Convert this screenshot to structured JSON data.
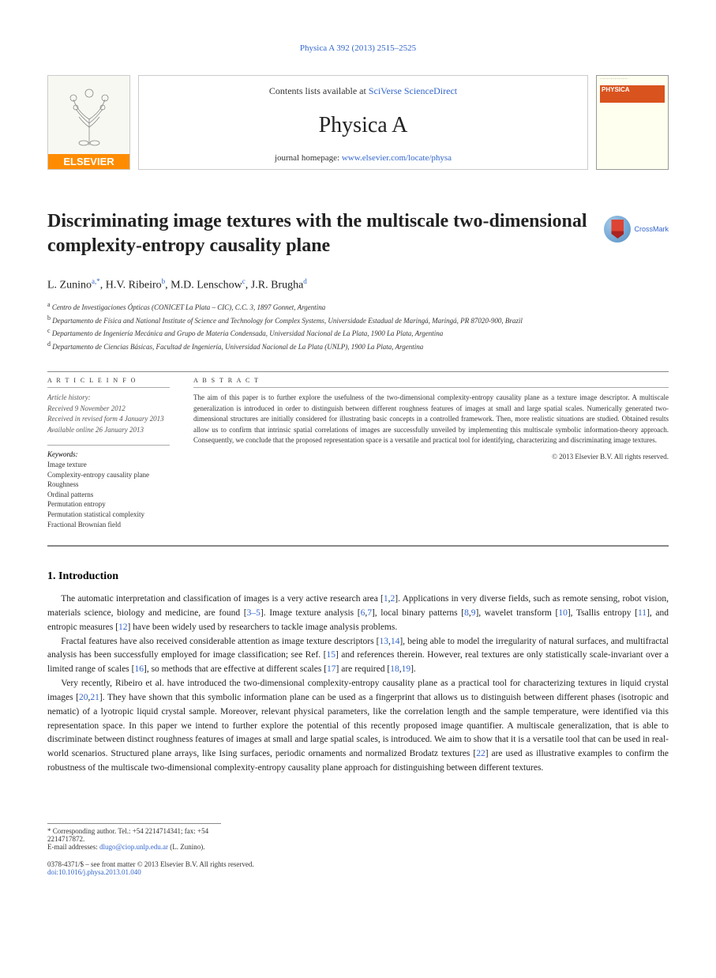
{
  "header": {
    "citation": "Physica A 392 (2013) 2515–2525",
    "contents_prefix": "Contents lists available at ",
    "contents_link": "SciVerse ScienceDirect",
    "journal": "Physica A",
    "homepage_prefix": "journal homepage: ",
    "homepage_link": "www.elsevier.com/locate/physa",
    "elsevier": "ELSEVIER",
    "cover_label": "PHYSICA",
    "crossmark": "CrossMark"
  },
  "title": "Discriminating image textures with the multiscale two-dimensional complexity-entropy causality plane",
  "authors_html": "L. Zunino<sup data-interactable=\"false\">a,*</sup>, H.V. Ribeiro<sup data-interactable=\"false\">b</sup>, M.D. Lenschow<sup data-interactable=\"false\">c</sup>, J.R. Brugha<sup data-interactable=\"false\">d</sup>",
  "affiliations": [
    "a Centro de Investigaciones Ópticas (CONICET La Plata – CIC), C.C. 3, 1897 Gonnet, Argentina",
    "b Departamento de Física and National Institute of Science and Technology for Complex Systems, Universidade Estadual de Maringá, Maringá, PR 87020-900, Brazil",
    "c Departamento de Ingeniería Mecánica and Grupo de Materia Condensada, Universidad Nacional de La Plata, 1900 La Plata, Argentina",
    "d Departamento de Ciencias Básicas, Facultad de Ingeniería, Universidad Nacional de La Plata (UNLP), 1900 La Plata, Argentina"
  ],
  "article_info": {
    "heading": "A R T I C L E   I N F O",
    "history": [
      "Article history:",
      "Received 9 November 2012",
      "Received in revised form 4 January 2013",
      "Available online 26 January 2013"
    ],
    "keywords_heading": "Keywords:",
    "keywords": [
      "Image texture",
      "Complexity-entropy causality plane",
      "Roughness",
      "Ordinal patterns",
      "Permutation entropy",
      "Permutation statistical complexity",
      "Fractional Brownian field"
    ]
  },
  "abstract": {
    "heading": "A B S T R A C T",
    "text": "The aim of this paper is to further explore the usefulness of the two-dimensional complexity-entropy causality plane as a texture image descriptor. A multiscale generalization is introduced in order to distinguish between different roughness features of images at small and large spatial scales. Numerically generated two-dimensional structures are initially considered for illustrating basic concepts in a controlled framework. Then, more realistic situations are studied. Obtained results allow us to confirm that intrinsic spatial correlations of images are successfully unveiled by implementing this multiscale symbolic information-theory approach. Consequently, we conclude that the proposed representation space is a versatile and practical tool for identifying, characterizing and discriminating image textures.",
    "copyright": "© 2013 Elsevier B.V. All rights reserved."
  },
  "section1": {
    "heading": "1. Introduction",
    "p1_a": "The automatic interpretation and classification of images is a very active research area [",
    "p1_b": "]. Applications in very diverse fields, such as remote sensing, robot vision, materials science, biology and medicine, are found [",
    "p1_c": "]. Image texture analysis [",
    "p1_d": "], local binary patterns [",
    "p1_e": "], wavelet transform [",
    "p1_f": "], Tsallis entropy [",
    "p1_g": "], and entropic measures [",
    "p1_h": "] have been widely used by researchers to tackle image analysis problems.",
    "p2_a": "Fractal features have also received considerable attention as image texture descriptors [",
    "p2_b": "], being able to model the irregularity of natural surfaces, and multifractal analysis has been successfully employed for image classification; see Ref. [",
    "p2_c": "] and references therein. However, real textures are only statistically scale-invariant over a limited range of scales [",
    "p2_d": "], so methods that are effective at different scales [",
    "p2_e": "] are required [",
    "p2_f": "].",
    "p3_a": "Very recently, Ribeiro et al. have introduced the two-dimensional complexity-entropy causality plane as a practical tool for characterizing textures in liquid crystal images [",
    "p3_b": "]. They have shown that this symbolic information plane can be used as a fingerprint that allows us to distinguish between different phases (isotropic and nematic) of a lyotropic liquid crystal sample. Moreover, relevant physical parameters, like the correlation length and the sample temperature, were identified via this representation space. In this paper we intend to further explore the potential of this recently proposed image quantifier. A multiscale generalization, that is able to discriminate between distinct roughness features of images at small and large spatial scales, is introduced. We aim to show that it is a versatile tool that can be used in real-world scenarios. Structured plane arrays, like Ising surfaces, periodic ornaments and normalized Brodatz textures [",
    "p3_c": "] are used as illustrative examples to confirm the robustness of the multiscale two-dimensional complexity-entropy causality plane approach for distinguishing between different textures."
  },
  "footer": {
    "corr_label": "* Corresponding author. Tel.: +54 2214714341; fax: +54 2214717872.",
    "email_label": "E-mail addresses: ",
    "email": "dlugo@ciop.unlp.edu.ar",
    "email_name": " (L. Zunino).",
    "copyright": "0378-4371/$ – see front matter © 2013 Elsevier B.V. All rights reserved.",
    "doi": "doi:10.1016/j.physa.2013.01.040"
  },
  "refs": {
    "r1": "1",
    "r2": "2",
    "r35": "3–5",
    "r6": "6",
    "r7": "7",
    "r8": "8",
    "r9": "9",
    "r10": "10",
    "r11": "11",
    "r12": "12",
    "r13": "13",
    "r14": "14",
    "r15": "15",
    "r16": "16",
    "r17": "17",
    "r18": "18",
    "r19": "19",
    "r20": "20",
    "r21": "21",
    "r22": "22"
  }
}
